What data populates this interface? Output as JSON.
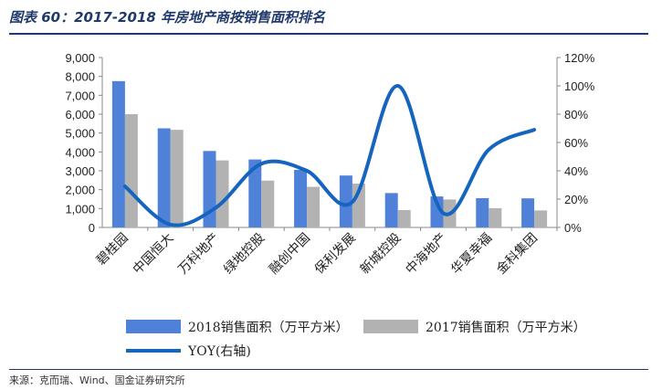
{
  "header": {
    "title": "图表 60：2017-2018 年房地产商按销售面积排名"
  },
  "source": "来源：克而瑞、Wind、国金证券研究所",
  "chart_data": {
    "type": "bar",
    "title": "",
    "categories": [
      "碧桂园",
      "中国恒大",
      "万科地产",
      "绿地控股",
      "融创中国",
      "保利发展",
      "新城控股",
      "中海地产",
      "华夏幸福",
      "金科集团"
    ],
    "series": [
      {
        "name": "2018销售面积（万平方米）",
        "type": "bar",
        "axis": "left",
        "color": "#4f81d9",
        "values": [
          7750,
          5250,
          4050,
          3600,
          3050,
          2750,
          1820,
          1640,
          1550,
          1540
        ]
      },
      {
        "name": "2017销售面积（万平方米）",
        "type": "bar",
        "axis": "left",
        "color": "#b2b2b2",
        "values": [
          6000,
          5170,
          3550,
          2480,
          2150,
          2320,
          920,
          1480,
          1020,
          900
        ]
      },
      {
        "name": "YOY(右轴)",
        "type": "line",
        "axis": "right",
        "color": "#1565c0",
        "values": [
          0.29,
          0.02,
          0.14,
          0.45,
          0.4,
          0.18,
          1.0,
          0.1,
          0.55,
          0.69
        ]
      }
    ],
    "y_left": {
      "ylim": [
        0,
        9000
      ],
      "ticks": [
        0,
        1000,
        2000,
        3000,
        4000,
        5000,
        6000,
        7000,
        8000,
        9000
      ],
      "tick_labels": [
        "0",
        "1,000",
        "2,000",
        "3,000",
        "4,000",
        "5,000",
        "6,000",
        "7,000",
        "8,000",
        "9,000"
      ]
    },
    "y_right": {
      "ylim": [
        0,
        1.2
      ],
      "ticks": [
        0,
        0.2,
        0.4,
        0.6,
        0.8,
        1.0,
        1.2
      ],
      "tick_labels": [
        "0%",
        "20%",
        "40%",
        "60%",
        "80%",
        "100%",
        "120%"
      ]
    },
    "grid": false,
    "legend_position": "bottom"
  }
}
